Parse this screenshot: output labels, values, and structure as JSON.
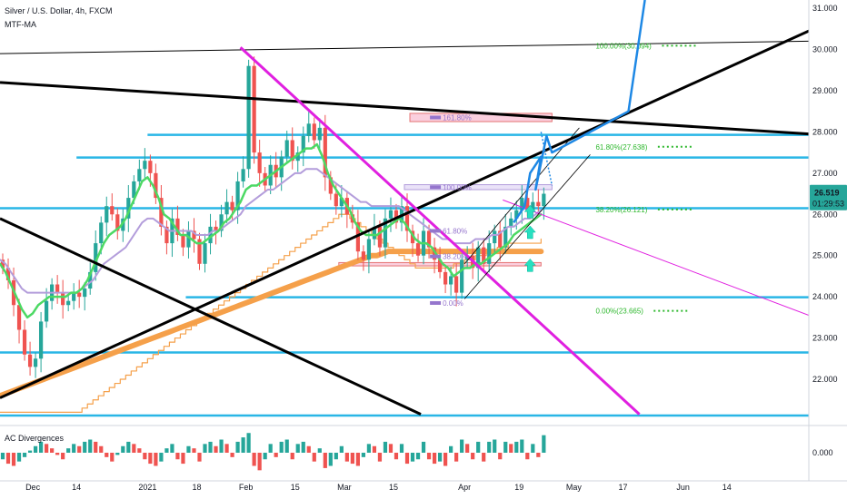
{
  "header": {
    "symbol_line": "Silver / U.S. Dollar, 4h, FXCM",
    "indicator_main": "MTF-MA",
    "indicator_sub": "AC Divergences"
  },
  "price_badge": {
    "price": "26.519",
    "countdown": "01:29:53",
    "color": "#26a69a"
  },
  "colors": {
    "trend_black": "#000000",
    "trend_magenta": "#e020e0",
    "horizontal_cyan": "#29b6e6",
    "ma_green": "#4cd964",
    "ma_purple": "#b39ddb",
    "ma_orange": "#f5a04a",
    "projection_blue": "#1e88e5",
    "arrow_teal": "#26e0c0",
    "fib_green": "#2eb82e",
    "fib_purple": "#9575cd",
    "candle_up": "#26a69a",
    "candle_down": "#ef5350"
  },
  "chart_data": {
    "type": "candlestick",
    "instrument": "Silver / U.S. Dollar",
    "timeframe": "4h",
    "ylim": [
      20.9,
      31.2
    ],
    "y_ticks": [
      "31.000",
      "30.000",
      "29.000",
      "28.000",
      "27.000",
      "26.000",
      "25.000",
      "24.000",
      "23.000",
      "22.000"
    ],
    "x_ticks": [
      {
        "label": "Dec",
        "idx": 6
      },
      {
        "label": "14",
        "idx": 14
      },
      {
        "label": "2021",
        "idx": 27
      },
      {
        "label": "18",
        "idx": 36
      },
      {
        "label": "Feb",
        "idx": 45
      },
      {
        "label": "15",
        "idx": 54
      },
      {
        "label": "Mar",
        "idx": 63
      },
      {
        "label": "15",
        "idx": 72
      },
      {
        "label": "Apr",
        "idx": 85
      },
      {
        "label": "19",
        "idx": 95
      },
      {
        "label": "May",
        "idx": 105
      },
      {
        "label": "17",
        "idx": 114
      },
      {
        "label": "Jun",
        "idx": 125
      },
      {
        "label": "14",
        "idx": 133
      }
    ],
    "bars_visible": 100,
    "bars_total": 148,
    "closes": [
      24.7,
      24.4,
      23.8,
      23.2,
      22.6,
      22.3,
      22.5,
      23.4,
      23.9,
      24.3,
      24.1,
      23.8,
      23.9,
      24.1,
      24.0,
      24.2,
      24.6,
      25.3,
      25.8,
      26.2,
      26.0,
      25.6,
      25.9,
      26.4,
      26.8,
      27.1,
      27.3,
      27.0,
      26.4,
      25.7,
      25.3,
      25.9,
      25.5,
      25.2,
      25.6,
      25.4,
      24.8,
      25.3,
      25.7,
      25.6,
      26.0,
      26.3,
      26.1,
      26.8,
      27.1,
      29.6,
      27.5,
      27.0,
      26.7,
      27.2,
      26.9,
      27.4,
      27.8,
      27.3,
      27.5,
      27.9,
      28.2,
      27.8,
      28.1,
      26.9,
      26.5,
      26.2,
      26.4,
      26.0,
      25.8,
      25.1,
      24.9,
      25.4,
      25.7,
      25.2,
      25.9,
      26.1,
      25.8,
      26.2,
      25.6,
      25.3,
      25.0,
      25.6,
      25.2,
      24.9,
      24.6,
      24.3,
      24.5,
      24.1,
      24.9,
      25.0,
      24.7,
      25.2,
      24.8,
      25.3,
      25.6,
      25.2,
      25.7,
      25.9,
      26.1,
      26.4,
      26.1,
      26.3,
      26.2,
      26.5
    ],
    "ac_values": [
      -0.3,
      -0.5,
      -0.6,
      -0.4,
      -0.2,
      0.1,
      0.3,
      0.5,
      0.4,
      0.2,
      -0.1,
      -0.3,
      0.2,
      0.4,
      0.3,
      0.5,
      0.6,
      0.5,
      0.3,
      -0.2,
      -0.4,
      -0.1,
      0.3,
      0.5,
      0.4,
      0.2,
      -0.3,
      -0.5,
      -0.6,
      -0.4,
      0.2,
      0.4,
      -0.3,
      -0.5,
      0.3,
      0.2,
      -0.4,
      0.4,
      0.5,
      0.3,
      0.6,
      0.4,
      -0.2,
      0.5,
      0.7,
      0.9,
      -0.6,
      -0.8,
      -0.3,
      0.4,
      -0.2,
      0.5,
      0.6,
      -0.3,
      0.4,
      0.5,
      0.3,
      -0.4,
      0.2,
      -0.7,
      -0.6,
      -0.3,
      0.3,
      -0.4,
      -0.5,
      -0.6,
      -0.2,
      0.4,
      0.3,
      -0.4,
      0.5,
      0.4,
      -0.3,
      0.4,
      -0.5,
      -0.4,
      -0.3,
      0.5,
      -0.3,
      -0.5,
      -0.4,
      -0.6,
      0.3,
      -0.4,
      0.6,
      0.4,
      -0.3,
      0.5,
      -0.4,
      0.5,
      0.6,
      -0.3,
      0.5,
      0.4,
      0.5,
      0.6,
      -0.3,
      0.4,
      -0.2,
      0.8
    ],
    "ac_ytick": "0.000",
    "ac_ylim": [
      -1.2,
      1.2
    ],
    "horizontal_levels": [
      {
        "price": 27.93,
        "from_idx": 27,
        "color_key": "horizontal_cyan"
      },
      {
        "price": 27.38,
        "from_idx": 14,
        "color_key": "horizontal_cyan"
      },
      {
        "price": 26.15,
        "from_idx": 0,
        "color_key": "horizontal_cyan"
      },
      {
        "price": 23.99,
        "from_idx": 34,
        "color_key": "horizontal_cyan"
      },
      {
        "price": 22.65,
        "from_idx": 0,
        "color_key": "horizontal_cyan"
      },
      {
        "price": 21.12,
        "from_idx": 0,
        "color_key": "horizontal_cyan"
      }
    ],
    "trend_lines": [
      {
        "from": [
          0,
          29.2
        ],
        "to": [
          148,
          27.95
        ],
        "color_key": "trend_black",
        "width": 3
      },
      {
        "from": [
          0,
          21.55
        ],
        "to": [
          148,
          30.45
        ],
        "color_key": "trend_black",
        "width": 3
      },
      {
        "from": [
          0,
          25.9
        ],
        "to": [
          77,
          21.15
        ],
        "color_key": "trend_black",
        "width": 3
      },
      {
        "from": [
          0,
          29.9
        ],
        "to": [
          148,
          30.2
        ],
        "color_key": "trend_black",
        "width": 1
      },
      {
        "from": [
          44,
          30.05
        ],
        "to": [
          117,
          21.15
        ],
        "color_key": "trend_magenta",
        "width": 3
      },
      {
        "from": [
          92,
          26.35
        ],
        "to": [
          148,
          23.55
        ],
        "color_key": "trend_magenta",
        "width": 1
      }
    ],
    "channel_lines": [
      {
        "from": [
          85,
          24.8
        ],
        "to": [
          106,
          28.1
        ]
      },
      {
        "from": [
          85,
          23.95
        ],
        "to": [
          108,
          27.45
        ]
      }
    ],
    "rect_zones": [
      {
        "x1": 75,
        "x2": 101,
        "top": 28.45,
        "bottom": 28.25,
        "fill": "#f8bbd0",
        "stroke": "#e57373"
      },
      {
        "x1": 74,
        "x2": 101,
        "top": 26.72,
        "bottom": 26.6,
        "fill": "#e1d5f5",
        "stroke": "#b39ddb"
      },
      {
        "x1": 62,
        "x2": 99,
        "top": 24.83,
        "bottom": 24.75,
        "fill": "#f8bbd0",
        "stroke": "#e57373"
      }
    ],
    "fib_levels": [
      {
        "text": "100.00%(30.094)",
        "price": 30.09,
        "idx": 109,
        "color_key": "fib_green"
      },
      {
        "text": "61.80%(27.638)",
        "price": 27.64,
        "idx": 109,
        "color_key": "fib_green"
      },
      {
        "text": "38.20%(26.121)",
        "price": 26.12,
        "idx": 109,
        "color_key": "fib_green"
      },
      {
        "text": "0.00%(23.665)",
        "price": 23.66,
        "idx": 109,
        "color_key": "fib_green"
      },
      {
        "text": "161.80%",
        "price": 28.35,
        "idx": 81,
        "color_key": "fib_purple"
      },
      {
        "text": "100.00%",
        "price": 26.66,
        "idx": 81,
        "color_key": "fib_purple"
      },
      {
        "text": "61.80%",
        "price": 25.6,
        "idx": 81,
        "color_key": "fib_purple"
      },
      {
        "text": "38.20%",
        "price": 24.98,
        "idx": 81,
        "color_key": "fib_purple"
      },
      {
        "text": "0.00%",
        "price": 23.85,
        "idx": 81,
        "color_key": "fib_purple"
      }
    ],
    "projection_path": [
      [
        94,
        25.8
      ],
      [
        96,
        26.2
      ],
      [
        97,
        27.0
      ],
      [
        99,
        27.4
      ],
      [
        98,
        26.6
      ],
      [
        100,
        27.9
      ],
      [
        101,
        27.5
      ],
      [
        115,
        28.5
      ],
      [
        118,
        31.2
      ]
    ],
    "projection_dashed": [
      [
        99,
        28.0
      ],
      [
        101,
        26.7
      ]
    ],
    "up_arrows": [
      {
        "idx": 96,
        "price": 26.0
      },
      {
        "idx": 96,
        "price": 25.5
      },
      {
        "idx": 96,
        "price": 24.7
      }
    ],
    "ma_green": [
      24.8,
      24.6,
      24.3,
      24.0,
      23.7,
      23.5,
      23.6,
      23.8,
      23.9,
      24.0,
      24.0,
      24.0,
      24.0,
      24.1,
      24.1,
      24.2,
      24.4,
      24.7,
      25.0,
      25.3,
      25.5,
      25.6,
      25.7,
      25.9,
      26.2,
      26.5,
      26.8,
      26.9,
      26.7,
      26.4,
      26.0,
      25.9,
      25.7,
      25.5,
      25.5,
      25.4,
      25.3,
      25.3,
      25.4,
      25.5,
      25.6,
      25.8,
      25.9,
      26.1,
      26.3,
      26.6,
      26.7,
      26.7,
      26.8,
      26.9,
      27.0,
      27.1,
      27.2,
      27.3,
      27.4,
      27.5,
      27.6,
      27.6,
      27.7,
      27.4,
      27.0,
      26.7,
      26.5,
      26.3,
      26.1,
      25.8,
      25.6,
      25.5,
      25.5,
      25.5,
      25.6,
      25.7,
      25.8,
      25.9,
      25.8,
      25.6,
      25.4,
      25.3,
      25.3,
      25.2,
      25.0,
      24.8,
      24.7,
      24.5,
      24.6,
      24.7,
      24.7,
      24.8,
      24.8,
      24.9,
      25.0,
      25.1,
      25.2,
      25.3,
      25.5,
      25.6,
      25.7,
      25.8,
      25.9,
      26.0
    ],
    "ma_purple": [
      24.9,
      24.8,
      24.6,
      24.4,
      24.2,
      24.1,
      24.1,
      24.1,
      24.1,
      24.1,
      24.1,
      24.1,
      24.1,
      24.1,
      24.1,
      24.2,
      24.3,
      24.4,
      24.6,
      24.8,
      24.9,
      25.0,
      25.1,
      25.2,
      25.4,
      25.6,
      25.8,
      25.9,
      25.9,
      25.8,
      25.7,
      25.6,
      25.6,
      25.6,
      25.6,
      25.6,
      25.5,
      25.5,
      25.5,
      25.6,
      25.6,
      25.7,
      25.8,
      25.9,
      26.0,
      26.2,
      26.3,
      26.4,
      26.5,
      26.6,
      26.6,
      26.7,
      26.8,
      26.9,
      27.0,
      27.0,
      27.1,
      27.1,
      27.1,
      27.0,
      26.9,
      26.8,
      26.7,
      26.6,
      26.5,
      26.4,
      26.3,
      26.3,
      26.2,
      26.2,
      26.2,
      26.2,
      26.2,
      26.2,
      26.1,
      26.0,
      25.9,
      25.8,
      25.7,
      25.6,
      25.5,
      25.4,
      25.4,
      25.3,
      25.3,
      25.3,
      25.3,
      25.4,
      25.4,
      25.4,
      25.5,
      25.5,
      25.6,
      25.7,
      25.7,
      25.8,
      25.9,
      25.9,
      26.0,
      26.1
    ],
    "ma_orange_thick": [
      21.6,
      21.65,
      21.7,
      21.75,
      21.8,
      21.85,
      21.9,
      21.95,
      22.0,
      22.05,
      22.1,
      22.15,
      22.2,
      22.25,
      22.3,
      22.35,
      22.4,
      22.45,
      22.5,
      22.55,
      22.6,
      22.65,
      22.7,
      22.75,
      22.8,
      22.85,
      22.9,
      22.95,
      23.0,
      23.05,
      23.1,
      23.15,
      23.2,
      23.25,
      23.3,
      23.35,
      23.4,
      23.45,
      23.5,
      23.55,
      23.6,
      23.65,
      23.7,
      23.75,
      23.8,
      23.85,
      23.9,
      23.95,
      24.0,
      24.05,
      24.1,
      24.15,
      24.2,
      24.25,
      24.3,
      24.35,
      24.4,
      24.45,
      24.5,
      24.55,
      24.6,
      24.65,
      24.7,
      24.75,
      24.8,
      24.85,
      24.9,
      24.95,
      25.0,
      25.0,
      25.05,
      25.1,
      25.1,
      25.1,
      25.1,
      25.1,
      25.1,
      25.1,
      25.1,
      25.1,
      25.1,
      25.1,
      25.1,
      25.1,
      25.1,
      25.1,
      25.1,
      25.1,
      25.1,
      25.1,
      25.1,
      25.1,
      25.1,
      25.1,
      25.1,
      25.1,
      25.1,
      25.1,
      25.1,
      25.1
    ],
    "ma_orange_thin": [
      21.2,
      21.2,
      21.2,
      21.2,
      21.2,
      21.2,
      21.2,
      21.2,
      21.2,
      21.2,
      21.2,
      21.2,
      21.2,
      21.2,
      21.2,
      21.3,
      21.4,
      21.5,
      21.6,
      21.7,
      21.8,
      21.9,
      22.0,
      22.1,
      22.2,
      22.3,
      22.4,
      22.5,
      22.6,
      22.7,
      22.8,
      22.9,
      23.0,
      23.1,
      23.2,
      23.3,
      23.4,
      23.5,
      23.6,
      23.7,
      23.8,
      23.9,
      24.0,
      24.1,
      24.2,
      24.3,
      24.4,
      24.5,
      24.6,
      24.7,
      24.8,
      24.9,
      25.0,
      25.1,
      25.2,
      25.3,
      25.4,
      25.5,
      25.6,
      25.7,
      25.8,
      25.9,
      26.0,
      26.0,
      25.9,
      25.8,
      25.7,
      25.6,
      25.5,
      25.4,
      25.3,
      25.2,
      25.1,
      25.0,
      24.9,
      24.8,
      24.7,
      24.7,
      24.7,
      24.7,
      24.7,
      24.7,
      24.7,
      24.8,
      24.8,
      24.9,
      24.9,
      25.0,
      25.0,
      25.1,
      25.1,
      25.2,
      25.2,
      25.3,
      25.3,
      25.3,
      25.3,
      25.3,
      25.3,
      25.4
    ]
  }
}
